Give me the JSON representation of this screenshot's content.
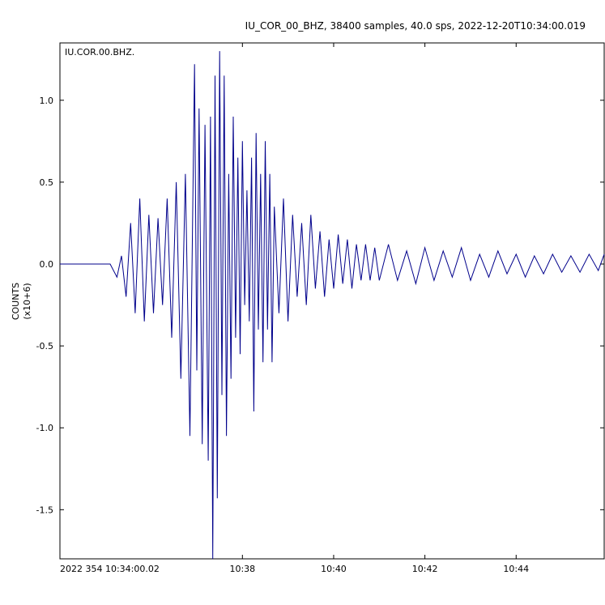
{
  "header": {
    "title": "IU_COR_00_BHZ, 38400 samples, 40.0 sps, 2022-12-20T10:34:00.019"
  },
  "chart_data": {
    "type": "line",
    "station_label": "IU.COR.00.BHZ.",
    "ylabel": "COUNTS",
    "yunit": "(x10+6)",
    "x_tick_labels": [
      "2022 354 10:34:00.02",
      "10:38",
      "10:40",
      "10:42",
      "10:44"
    ],
    "x_tick_minutes": [
      0,
      4,
      6,
      8,
      10
    ],
    "xlim_minutes": [
      0,
      11.93
    ],
    "y_tick_labels": [
      "1.0",
      "0.5",
      "0.0",
      "-0.5",
      "-1.0",
      "-1.5"
    ],
    "y_tick_values": [
      1.0,
      0.5,
      0.0,
      -0.5,
      -1.0,
      -1.5
    ],
    "ylim": [
      -1.8,
      1.35
    ],
    "grid": false,
    "line_color": "#00008b",
    "series": [
      {
        "x_minutes": [
          0.0,
          1.1,
          1.25,
          1.35,
          1.45,
          1.55,
          1.65,
          1.75,
          1.85,
          1.95,
          2.05,
          2.15,
          2.25,
          2.35,
          2.45,
          2.55,
          2.65,
          2.75,
          2.85,
          2.95,
          3.0,
          3.05,
          3.12,
          3.18,
          3.25,
          3.3,
          3.35,
          3.4,
          3.45,
          3.5,
          3.55,
          3.6,
          3.65,
          3.7,
          3.75,
          3.8,
          3.85,
          3.9,
          3.95,
          4.0,
          4.05,
          4.1,
          4.15,
          4.2,
          4.25,
          4.3,
          4.35,
          4.4,
          4.45,
          4.5,
          4.55,
          4.6,
          4.65,
          4.7,
          4.8,
          4.9,
          5.0,
          5.1,
          5.2,
          5.3,
          5.4,
          5.5,
          5.6,
          5.7,
          5.8,
          5.9,
          6.0,
          6.1,
          6.2,
          6.3,
          6.4,
          6.5,
          6.6,
          6.7,
          6.8,
          6.9,
          7.0,
          7.2,
          7.4,
          7.6,
          7.8,
          8.0,
          8.2,
          8.4,
          8.6,
          8.8,
          9.0,
          9.2,
          9.4,
          9.6,
          9.8,
          10.0,
          10.2,
          10.4,
          10.6,
          10.8,
          11.0,
          11.2,
          11.4,
          11.6,
          11.8,
          11.93
        ],
        "y": [
          0.0,
          0.0,
          -0.08,
          0.05,
          -0.2,
          0.25,
          -0.3,
          0.4,
          -0.35,
          0.3,
          -0.3,
          0.28,
          -0.25,
          0.4,
          -0.45,
          0.5,
          -0.7,
          0.55,
          -1.05,
          1.22,
          -0.65,
          0.95,
          -1.1,
          0.85,
          -1.2,
          0.9,
          -1.8,
          1.15,
          -1.43,
          1.3,
          -0.8,
          1.15,
          -1.05,
          0.55,
          -0.7,
          0.9,
          -0.45,
          0.65,
          -0.55,
          0.75,
          -0.25,
          0.45,
          -0.35,
          0.65,
          -0.9,
          0.8,
          -0.4,
          0.55,
          -0.6,
          0.75,
          -0.4,
          0.55,
          -0.6,
          0.35,
          -0.3,
          0.4,
          -0.35,
          0.3,
          -0.2,
          0.25,
          -0.25,
          0.3,
          -0.15,
          0.2,
          -0.2,
          0.15,
          -0.15,
          0.18,
          -0.12,
          0.15,
          -0.15,
          0.12,
          -0.1,
          0.12,
          -0.1,
          0.1,
          -0.1,
          0.12,
          -0.1,
          0.08,
          -0.12,
          0.1,
          -0.1,
          0.08,
          -0.08,
          0.1,
          -0.1,
          0.06,
          -0.08,
          0.08,
          -0.06,
          0.06,
          -0.08,
          0.05,
          -0.06,
          0.06,
          -0.05,
          0.05,
          -0.05,
          0.06,
          -0.04,
          0.06
        ]
      }
    ]
  }
}
